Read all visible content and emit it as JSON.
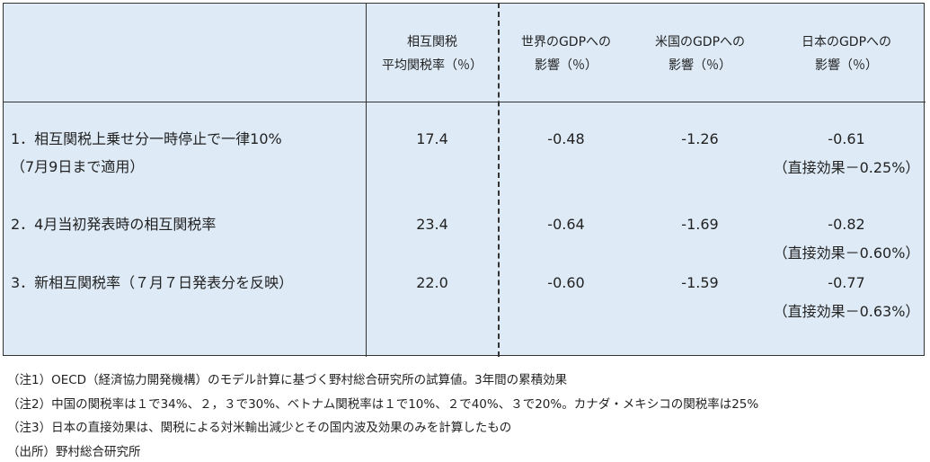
{
  "table": {
    "header": [
      [
        "相互関税",
        "平均関税率（％）"
      ],
      [
        "世界のGDPへの",
        "影響（％）"
      ],
      [
        "米国のGDPへの",
        "影響（％）"
      ],
      [
        "日本のGDPへの",
        "影響（％）"
      ]
    ],
    "rows": [
      {
        "label": [
          "1．相互関税上乗せ分一時停止で一律10%",
          "（7月9日まで適用）"
        ],
        "values": [
          "17.4",
          "-0.48",
          "-1.26",
          "-0.61"
        ],
        "note": "（直接効果－0.25%）"
      },
      {
        "label": [
          "2．4月当初発表時の相互関税率"
        ],
        "values": [
          "23.4",
          "-0.64",
          "-1.69",
          "-0.82"
        ],
        "note": "（直接効果－0.60%）"
      },
      {
        "label": [
          "3．新相互関税率（７月７日発表分を反映）"
        ],
        "values": [
          "22.0",
          "-0.60",
          "-1.59",
          "-0.77"
        ],
        "note": "（直接効果－0.63%）"
      }
    ]
  },
  "footnotes": [
    "（注1）OECD（経済協力開発機構）のモデル計算に基づく野村総合研究所の試算値。3年間の累積効果",
    "（注2）中国の関税率は１で34%、２，３で30%、ベトナム関税率は１で10%、２で40%、３で20%。カナダ・メキシコの関税率は25%",
    "（注3）日本の直接効果は、関税による対米輸出減少とその国内波及効果のみを計算したもの",
    "（出所）野村総合研究所"
  ]
}
